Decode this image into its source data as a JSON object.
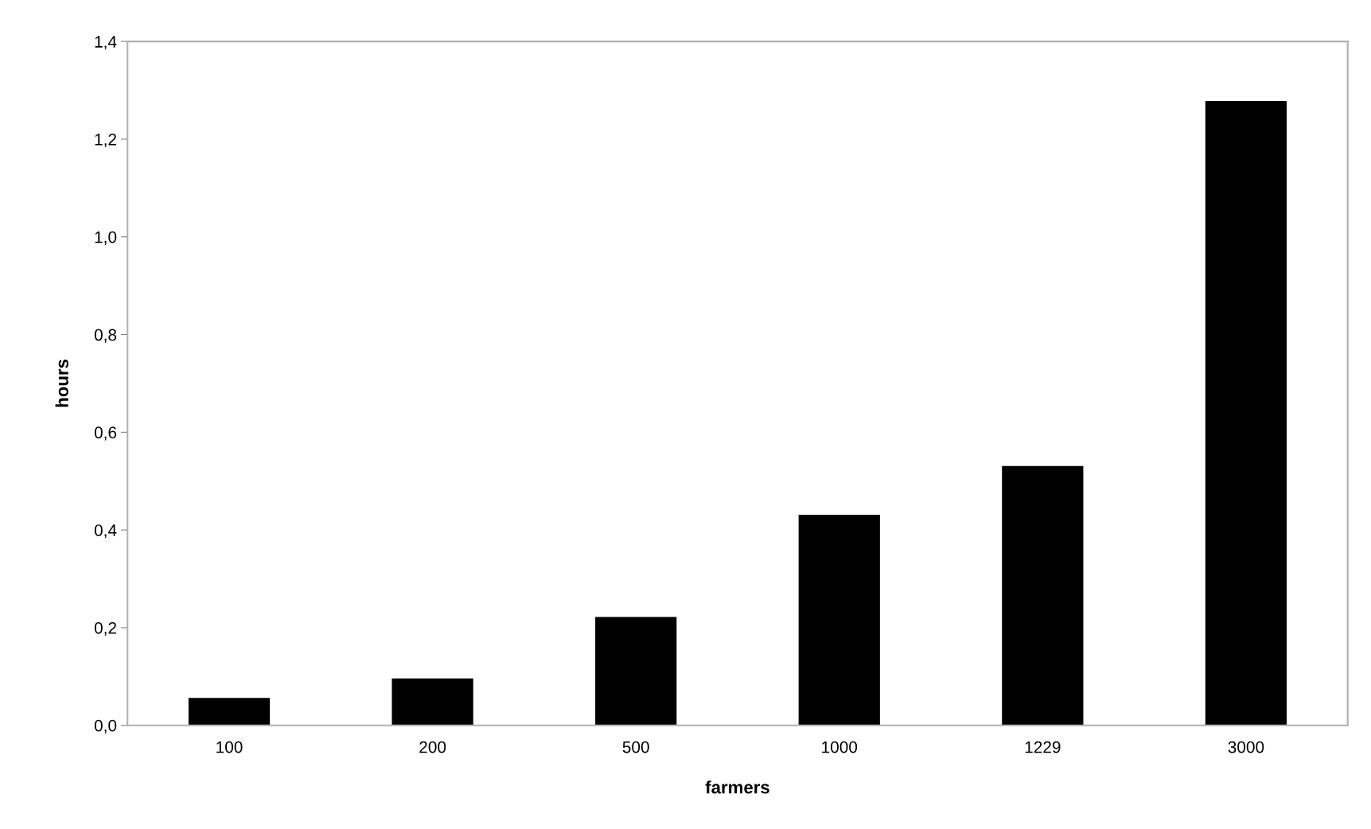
{
  "chart_data": {
    "type": "bar",
    "xlabel": "farmers",
    "ylabel": "hours",
    "categories": [
      "100",
      "200",
      "500",
      "1000",
      "1229",
      "3000"
    ],
    "values": [
      0.056,
      0.096,
      0.222,
      0.431,
      0.531,
      1.278
    ],
    "color": "#000000",
    "ylim": [
      0,
      1.4
    ],
    "yticks": [
      {
        "value": 0,
        "label": "0,0"
      },
      {
        "value": 0.2,
        "label": "0,2"
      },
      {
        "value": 0.4,
        "label": "0,4"
      },
      {
        "value": 0.6,
        "label": "0,6"
      },
      {
        "value": 0.8,
        "label": "0,8"
      },
      {
        "value": 1.0,
        "label": "1,0"
      },
      {
        "value": 1.2,
        "label": "1,2"
      },
      {
        "value": 1.4,
        "label": "1,4"
      }
    ],
    "grid": false,
    "legend": false
  }
}
